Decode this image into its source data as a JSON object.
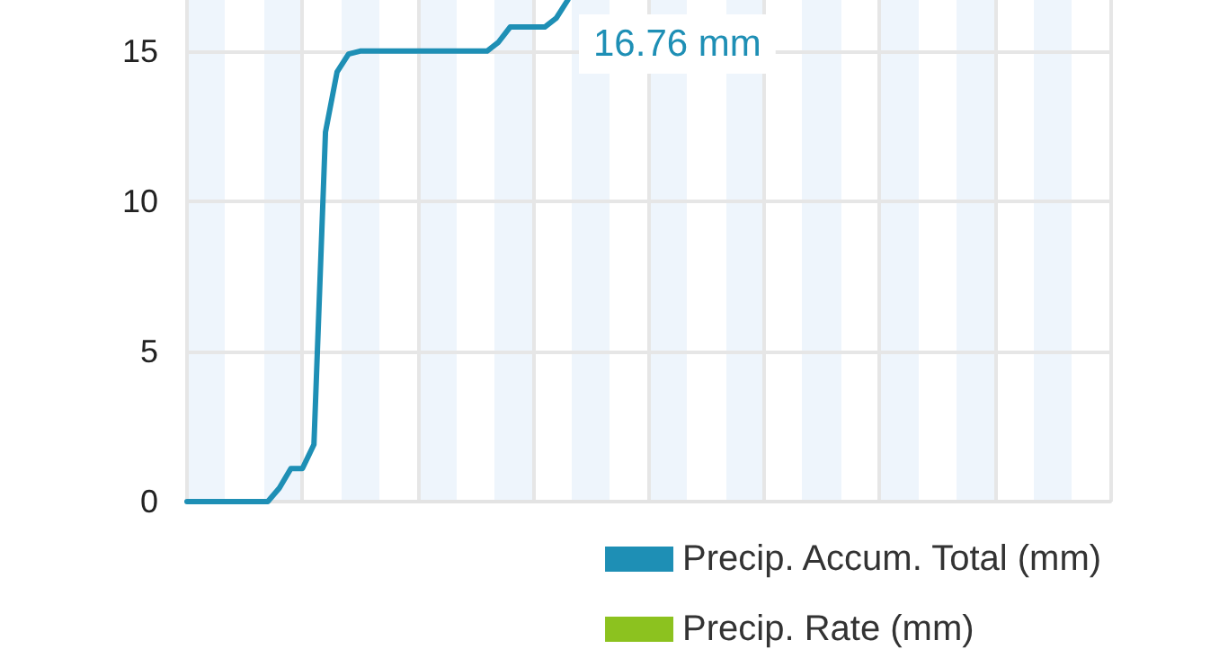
{
  "chart_data": {
    "type": "line",
    "categories": [
      null,
      null,
      null,
      null,
      null,
      null,
      null,
      null,
      null,
      null,
      null,
      null,
      null,
      null,
      null,
      null,
      null,
      null,
      null,
      null,
      null,
      null,
      null,
      null,
      null,
      null,
      null,
      null,
      null,
      null,
      null,
      null,
      null,
      null,
      null,
      null,
      null,
      null,
      null,
      null,
      null,
      null,
      null,
      null,
      null,
      null,
      null,
      null,
      null,
      null,
      null,
      null,
      null,
      null,
      null,
      null,
      null,
      null,
      null,
      null,
      null,
      null,
      null,
      null,
      null,
      null,
      null,
      null,
      null,
      null,
      null,
      null,
      null,
      null,
      null,
      null,
      null,
      null,
      null,
      null,
      null
    ],
    "ylim": [
      0,
      16.7
    ],
    "yticks": [
      0,
      5,
      10,
      15
    ],
    "tick_labels": "y",
    "grid": true,
    "legend": "bottom right",
    "line_style": "solid",
    "series": [
      {
        "name": "Precip. Accum. Total (mm)",
        "color": "#1e8fb5",
        "values": [
          0,
          0,
          0,
          0,
          0,
          0,
          0,
          0,
          0.45,
          1.1,
          1.1,
          1.9,
          12.3,
          14.3,
          14.9,
          15,
          15,
          15,
          15,
          15,
          15,
          15,
          15,
          15,
          15,
          15,
          15,
          15.3,
          15.8,
          15.8,
          15.8,
          15.8,
          16.1,
          16.7,
          null,
          null,
          null,
          null,
          null,
          null,
          null,
          null,
          null,
          null,
          null,
          null,
          null,
          null,
          null,
          null,
          null,
          null,
          null,
          null,
          null,
          null,
          null,
          null,
          null,
          null,
          null,
          null,
          null,
          null,
          null,
          null,
          null,
          null,
          null,
          null,
          null,
          null,
          null,
          null,
          null,
          null,
          null,
          null,
          null,
          null,
          null
        ]
      },
      {
        "name": "Precip. Rate (mm)",
        "color": "#8cc21f",
        "values": [
          null,
          null,
          null,
          null,
          null,
          null,
          null,
          null,
          null,
          null,
          null,
          null,
          null,
          null,
          null,
          null,
          null,
          null,
          null,
          null,
          null,
          null,
          null,
          null,
          null,
          null,
          null,
          null,
          null,
          null,
          null,
          null,
          null,
          null,
          null,
          null,
          null,
          null,
          null,
          null,
          null,
          null,
          null,
          null,
          null,
          null,
          null,
          null,
          null,
          null,
          null,
          null,
          null,
          null,
          null,
          null,
          null,
          null,
          null,
          null,
          null,
          null,
          null,
          null,
          null,
          null,
          null,
          null,
          null,
          null,
          null,
          null,
          null,
          null,
          null,
          null,
          null,
          null,
          null,
          null,
          null
        ]
      }
    ],
    "annotations": [
      "16.76 mm"
    ]
  }
}
